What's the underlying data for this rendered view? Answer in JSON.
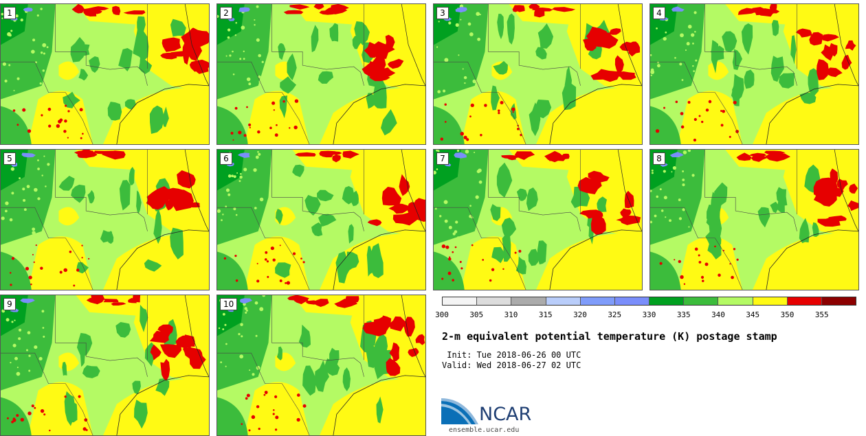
{
  "panels": [
    "1",
    "2",
    "3",
    "4",
    "5",
    "6",
    "7",
    "8",
    "9",
    "10"
  ],
  "colorbar": {
    "colors": [
      "#f4f4f4",
      "#dcdcdc",
      "#ababab",
      "#b9cdfa",
      "#7f9cfa",
      "#7a8efb",
      "#00a020",
      "#3cbc3c",
      "#b4fa64",
      "#fffa14",
      "#e60000",
      "#8c0000"
    ],
    "ticks": [
      "300",
      "305",
      "310",
      "315",
      "320",
      "325",
      "330",
      "335",
      "340",
      "345",
      "350",
      "355"
    ]
  },
  "title": "2-m equivalent potential temperature (K) postage stamp",
  "init": " Init: Tue 2018-06-26 00 UTC",
  "valid": "Valid: Wed 2018-06-27 02 UTC",
  "logo": {
    "text": "NCAR",
    "site": "ensemble.ucar.edu"
  }
}
